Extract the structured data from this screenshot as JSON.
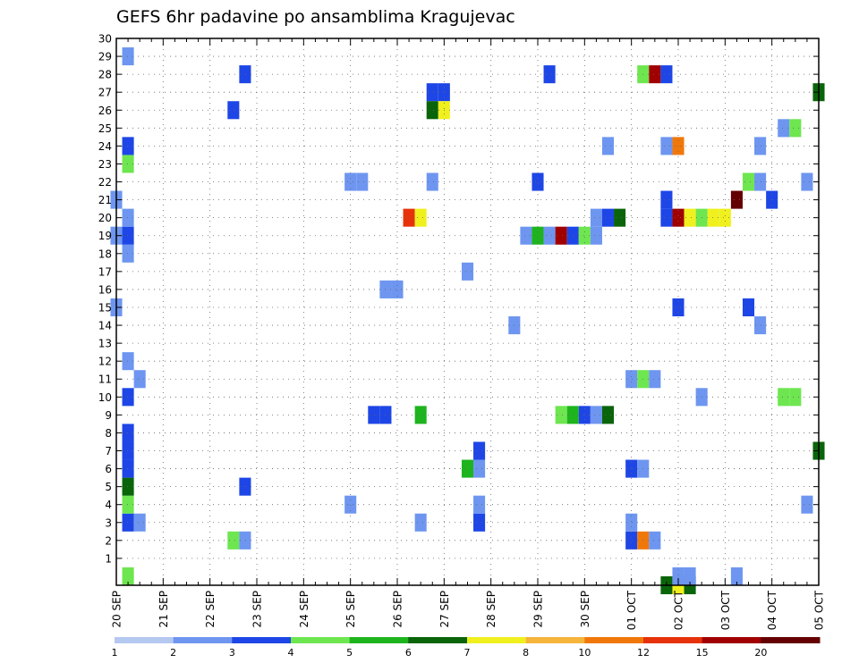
{
  "chart_data": {
    "type": "heatmap",
    "title": "GEFS 6hr padavine po ansamblima Kragujevac",
    "xlabel": "",
    "ylabel": "",
    "x_tick_labels": [
      "20 SEP",
      "21 SEP",
      "22 SEP",
      "23 SEP",
      "24 SEP",
      "25 SEP",
      "26 SEP",
      "27 SEP",
      "28 SEP",
      "29 SEP",
      "30 SEP",
      "01 OCT",
      "02 OCT",
      "03 OCT",
      "04 OCT",
      "05 OCT"
    ],
    "y_tick_labels": [
      "1",
      "2",
      "3",
      "4",
      "5",
      "6",
      "7",
      "8",
      "9",
      "10",
      "11",
      "12",
      "13",
      "14",
      "15",
      "16",
      "17",
      "18",
      "19",
      "20",
      "21",
      "22",
      "23",
      "24",
      "25",
      "26",
      "27",
      "28",
      "29",
      "30"
    ],
    "y_range": [
      0,
      30
    ],
    "x_steps": 60,
    "grid": true,
    "color_scale": {
      "labels": [
        "1",
        "2",
        "3",
        "4",
        "5",
        "6",
        "7",
        "8",
        "10",
        "12",
        "15",
        "20"
      ],
      "colors": [
        "#b4c8f0",
        "#6e96f0",
        "#1e46e6",
        "#6ee650",
        "#1eb41e",
        "#0a640a",
        "#f0f01e",
        "#f5b43c",
        "#f0780a",
        "#e6320a",
        "#a00000",
        "#640000"
      ]
    },
    "cells": [
      [
        1,
        0,
        3
      ],
      [
        1,
        3,
        2
      ],
      [
        1,
        4,
        3
      ],
      [
        1,
        5,
        5
      ],
      [
        1,
        6,
        2
      ],
      [
        1,
        7,
        2
      ],
      [
        1,
        8,
        2
      ],
      [
        1,
        10,
        2
      ],
      [
        1,
        12,
        1
      ],
      [
        1,
        18,
        1
      ],
      [
        1,
        19,
        2
      ],
      [
        1,
        20,
        1
      ],
      [
        1,
        23,
        3
      ],
      [
        1,
        24,
        2
      ],
      [
        1,
        29,
        1
      ],
      [
        2,
        3,
        1
      ],
      [
        2,
        11,
        1
      ],
      [
        0,
        15,
        1
      ],
      [
        0,
        19,
        1
      ],
      [
        0,
        21,
        1
      ],
      [
        10,
        2,
        3
      ],
      [
        11,
        2,
        1
      ],
      [
        11,
        5,
        2
      ],
      [
        10,
        26,
        2
      ],
      [
        11,
        28,
        2
      ],
      [
        20,
        4,
        1
      ],
      [
        20,
        22,
        1
      ],
      [
        21,
        22,
        1
      ],
      [
        22,
        9,
        2
      ],
      [
        23,
        9,
        2
      ],
      [
        23,
        16,
        1
      ],
      [
        24,
        16,
        1
      ],
      [
        25,
        20,
        9
      ],
      [
        26,
        20,
        6
      ],
      [
        27,
        27,
        2
      ],
      [
        28,
        27,
        2
      ],
      [
        27,
        26,
        5
      ],
      [
        28,
        26,
        6
      ],
      [
        26,
        9,
        4
      ],
      [
        26,
        3,
        1
      ],
      [
        27,
        22,
        1
      ],
      [
        30,
        6,
        4
      ],
      [
        31,
        6,
        1
      ],
      [
        31,
        7,
        2
      ],
      [
        31,
        3,
        2
      ],
      [
        31,
        4,
        1
      ],
      [
        30,
        17,
        1
      ],
      [
        34,
        14,
        1
      ],
      [
        35,
        19,
        1
      ],
      [
        36,
        19,
        4
      ],
      [
        37,
        19,
        1
      ],
      [
        38,
        19,
        10
      ],
      [
        39,
        19,
        2
      ],
      [
        40,
        19,
        3
      ],
      [
        41,
        19,
        1
      ],
      [
        36,
        22,
        2
      ],
      [
        37,
        28,
        2
      ],
      [
        38,
        9,
        3
      ],
      [
        39,
        9,
        4
      ],
      [
        40,
        9,
        2
      ],
      [
        41,
        9,
        1
      ],
      [
        42,
        9,
        5
      ],
      [
        41,
        20,
        1
      ],
      [
        42,
        20,
        2
      ],
      [
        43,
        20,
        5
      ],
      [
        42,
        24,
        1
      ],
      [
        44,
        2,
        2
      ],
      [
        44,
        3,
        1
      ],
      [
        44,
        6,
        2
      ],
      [
        45,
        6,
        1
      ],
      [
        45,
        2,
        8
      ],
      [
        46,
        2,
        1
      ],
      [
        44,
        11,
        1
      ],
      [
        45,
        11,
        3
      ],
      [
        46,
        11,
        1
      ],
      [
        45,
        28,
        3
      ],
      [
        46,
        28,
        10
      ],
      [
        47,
        28,
        2
      ],
      [
        47,
        24,
        1
      ],
      [
        48,
        24,
        8
      ],
      [
        47,
        20,
        2
      ],
      [
        47,
        21,
        2
      ],
      [
        48,
        20,
        10
      ],
      [
        49,
        20,
        6
      ],
      [
        50,
        20,
        3
      ],
      [
        51,
        20,
        6
      ],
      [
        47,
        -1,
        5
      ],
      [
        48,
        -1,
        6
      ],
      [
        49,
        -1,
        5
      ],
      [
        48,
        0,
        1
      ],
      [
        49,
        0,
        1
      ],
      [
        48,
        15,
        2
      ],
      [
        50,
        10,
        1
      ],
      [
        52,
        20,
        6
      ],
      [
        53,
        21,
        11
      ],
      [
        53,
        0,
        1
      ],
      [
        54,
        22,
        3
      ],
      [
        54,
        15,
        2
      ],
      [
        55,
        14,
        1
      ],
      [
        55,
        22,
        1
      ],
      [
        55,
        24,
        1
      ],
      [
        56,
        21,
        2
      ],
      [
        59,
        4,
        1
      ],
      [
        59,
        22,
        1
      ],
      [
        57,
        10,
        3
      ],
      [
        58,
        10,
        3
      ],
      [
        57,
        25,
        1
      ],
      [
        58,
        25,
        3
      ],
      [
        60,
        7,
        5
      ],
      [
        60,
        27,
        5
      ]
    ]
  }
}
